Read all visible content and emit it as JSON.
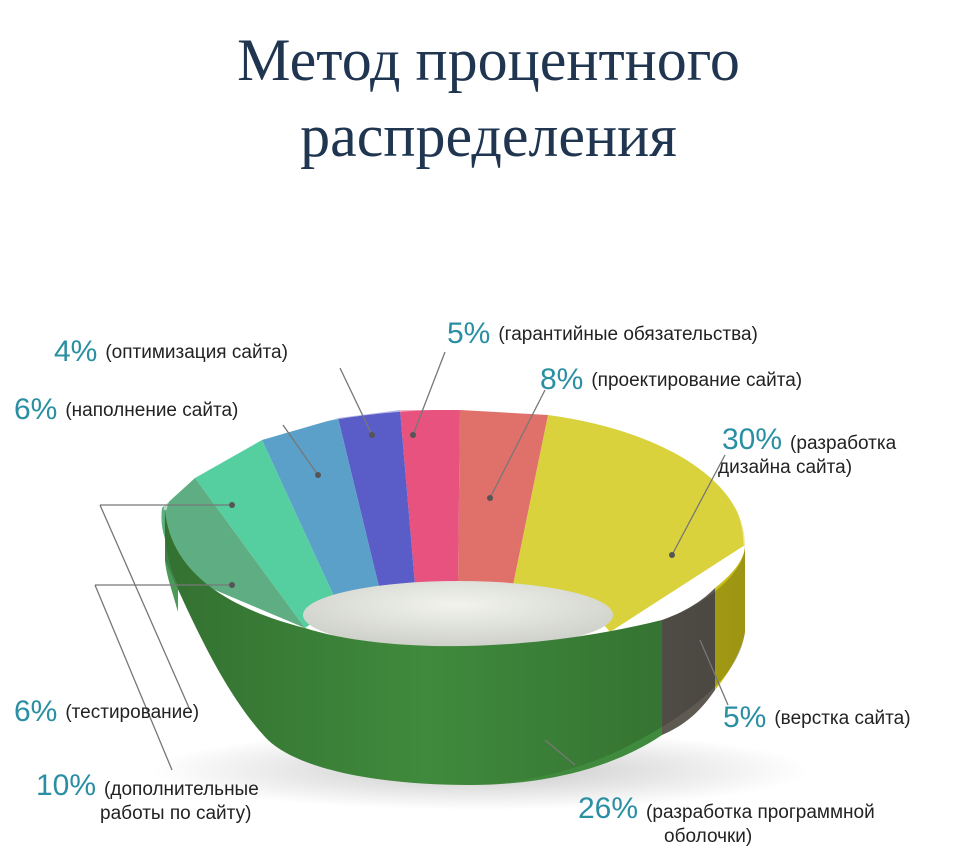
{
  "title": {
    "line1": "Метод процентного",
    "line2": "распределения"
  },
  "chart_data": {
    "type": "pie",
    "title": "Метод процентного распределения",
    "unit": "%",
    "slices": [
      {
        "key": "design",
        "value": 30,
        "pct": "30%",
        "label": "(разработка\nдизайна сайта)",
        "color": "#d9d23c"
      },
      {
        "key": "layout",
        "value": 5,
        "pct": "5%",
        "label": "(верстка сайта)",
        "color": "#5e5a52"
      },
      {
        "key": "program",
        "value": 26,
        "pct": "26%",
        "label": "(разработка программной\nоболочки)",
        "color": "#3f8a3c"
      },
      {
        "key": "extra",
        "value": 10,
        "pct": "10%",
        "label": "(дополнительные\nработы по сайту)",
        "color": "#4c9a58"
      },
      {
        "key": "testing",
        "value": 6,
        "pct": "6%",
        "label": "(тестирование)",
        "color": "#5fae83"
      },
      {
        "key": "content",
        "value": 6,
        "pct": "6%",
        "label": "(наполнение сайта)",
        "color": "#55cfa0"
      },
      {
        "key": "seo",
        "value": 4,
        "pct": "4%",
        "label": "(оптимизация сайта)",
        "color": "#5aa0c8"
      },
      {
        "key": "warranty",
        "value": 5,
        "pct": "5%",
        "label": "(гарантийные обязательства)",
        "color": "#5a5cc8"
      },
      {
        "key": "pink",
        "value": 8,
        "pct": "8%",
        "label": "(проектирование сайта)",
        "color": "#e8527e"
      }
    ],
    "colors": {
      "salmon": "#e0706a",
      "inner": "#e4e6df",
      "pct_text": "#2a8fa3",
      "leader": "#777777"
    }
  }
}
